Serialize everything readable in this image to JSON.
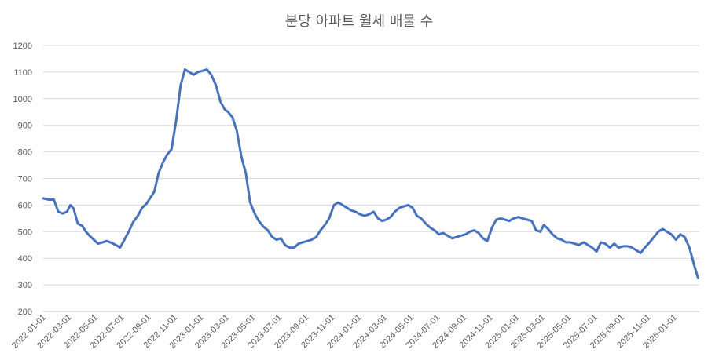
{
  "chart_data": {
    "type": "line",
    "title": "분당 아파트 월세 매물 수",
    "xlabel": "",
    "ylabel": "",
    "ylim": [
      200,
      1200
    ],
    "yticks": [
      200,
      300,
      400,
      500,
      600,
      700,
      800,
      900,
      1000,
      1100,
      1200
    ],
    "xlim": [
      "2022-01-01",
      "2026-02-28"
    ],
    "xticks": [
      "2022-01-01",
      "2022-03-01",
      "2022-05-01",
      "2022-07-01",
      "2022-09-01",
      "2022-11-01",
      "2023-01-01",
      "2023-03-01",
      "2023-05-01",
      "2023-07-01",
      "2023-09-01",
      "2023-11-01",
      "2024-01-01",
      "2024-03-01",
      "2024-05-01",
      "2024-07-01",
      "2024-09-01",
      "2024-11-01",
      "2025-01-01",
      "2025-03-01",
      "2025-05-01",
      "2025-07-01",
      "2025-09-01",
      "2025-11-01",
      "2026-01-01"
    ],
    "grid": true,
    "legend": "none",
    "line_color": "#4472c4",
    "series": [
      {
        "x": [
          "2022-01-01",
          "2022-01-15",
          "2022-01-25",
          "2022-02-05",
          "2022-02-15",
          "2022-02-25",
          "2022-03-05",
          "2022-03-12",
          "2022-03-22",
          "2022-04-01",
          "2022-04-10",
          "2022-04-18",
          "2022-04-28",
          "2022-05-08",
          "2022-05-18",
          "2022-05-28",
          "2022-06-08",
          "2022-06-20",
          "2022-06-28",
          "2022-07-08",
          "2022-07-18",
          "2022-07-28",
          "2022-08-08",
          "2022-08-18",
          "2022-08-28",
          "2022-09-05",
          "2022-09-15",
          "2022-09-25",
          "2022-10-05",
          "2022-10-15",
          "2022-10-25",
          "2022-11-05",
          "2022-11-15",
          "2022-11-25",
          "2022-12-05",
          "2022-12-15",
          "2022-12-25",
          "2023-01-05",
          "2023-01-15",
          "2023-01-25",
          "2023-02-05",
          "2023-02-15",
          "2023-02-25",
          "2023-03-05",
          "2023-03-15",
          "2023-03-25",
          "2023-04-05",
          "2023-04-15",
          "2023-04-25",
          "2023-05-05",
          "2023-05-15",
          "2023-05-25",
          "2023-06-05",
          "2023-06-15",
          "2023-06-25",
          "2023-07-05",
          "2023-07-15",
          "2023-07-25",
          "2023-08-05",
          "2023-08-15",
          "2023-08-25",
          "2023-09-05",
          "2023-09-15",
          "2023-09-25",
          "2023-10-05",
          "2023-10-15",
          "2023-10-25",
          "2023-11-05",
          "2023-11-15",
          "2023-11-25",
          "2023-12-05",
          "2023-12-15",
          "2023-12-25",
          "2024-01-05",
          "2024-01-15",
          "2024-01-25",
          "2024-02-05",
          "2024-02-15",
          "2024-02-25",
          "2024-03-05",
          "2024-03-15",
          "2024-03-25",
          "2024-04-05",
          "2024-04-15",
          "2024-04-25",
          "2024-05-05",
          "2024-05-15",
          "2024-05-25",
          "2024-06-05",
          "2024-06-15",
          "2024-06-25",
          "2024-07-05",
          "2024-07-15",
          "2024-07-25",
          "2024-08-05",
          "2024-08-15",
          "2024-08-25",
          "2024-09-05",
          "2024-09-15",
          "2024-09-25",
          "2024-10-05",
          "2024-10-15",
          "2024-10-25",
          "2024-11-05",
          "2024-11-15",
          "2024-11-25",
          "2024-12-05",
          "2024-12-15",
          "2024-12-25",
          "2025-01-05",
          "2025-01-15",
          "2025-01-25",
          "2025-02-05",
          "2025-02-15",
          "2025-02-25",
          "2025-03-05",
          "2025-03-15",
          "2025-03-25",
          "2025-04-05",
          "2025-04-15",
          "2025-04-25",
          "2025-05-05",
          "2025-05-15",
          "2025-05-25",
          "2025-06-05",
          "2025-06-15",
          "2025-06-25",
          "2025-07-05",
          "2025-07-15",
          "2025-07-25",
          "2025-08-05",
          "2025-08-15",
          "2025-08-25",
          "2025-09-05",
          "2025-09-15",
          "2025-09-25",
          "2025-10-05",
          "2025-10-15",
          "2025-10-25",
          "2025-11-05",
          "2025-11-15",
          "2025-11-25",
          "2025-12-05",
          "2025-12-15",
          "2025-12-25",
          "2026-01-05",
          "2026-01-15",
          "2026-01-25",
          "2026-02-05",
          "2026-02-15",
          "2026-02-25"
        ],
        "y": [
          625,
          620,
          622,
          575,
          568,
          575,
          600,
          588,
          530,
          522,
          500,
          485,
          470,
          455,
          460,
          465,
          458,
          448,
          440,
          470,
          500,
          535,
          560,
          590,
          605,
          625,
          650,
          720,
          760,
          790,
          810,
          920,
          1050,
          1110,
          1100,
          1090,
          1100,
          1105,
          1110,
          1090,
          1050,
          990,
          960,
          950,
          930,
          880,
          780,
          720,
          610,
          570,
          540,
          520,
          505,
          480,
          470,
          475,
          450,
          440,
          440,
          455,
          460,
          465,
          470,
          480,
          505,
          525,
          550,
          600,
          610,
          600,
          590,
          580,
          575,
          565,
          560,
          565,
          575,
          550,
          540,
          545,
          555,
          575,
          590,
          595,
          600,
          590,
          560,
          550,
          530,
          515,
          505,
          490,
          495,
          485,
          475,
          480,
          485,
          490,
          500,
          505,
          495,
          475,
          465,
          515,
          545,
          550,
          545,
          540,
          550,
          555,
          550,
          545,
          540,
          505,
          500,
          525,
          510,
          490,
          475,
          470,
          460,
          460,
          455,
          450,
          460,
          450,
          440,
          425,
          460,
          455,
          440,
          455,
          440,
          445,
          445,
          440,
          430,
          420,
          440,
          460,
          480,
          500,
          510,
          500,
          490,
          470,
          490,
          480,
          440,
          380,
          325
        ]
      }
    ]
  }
}
